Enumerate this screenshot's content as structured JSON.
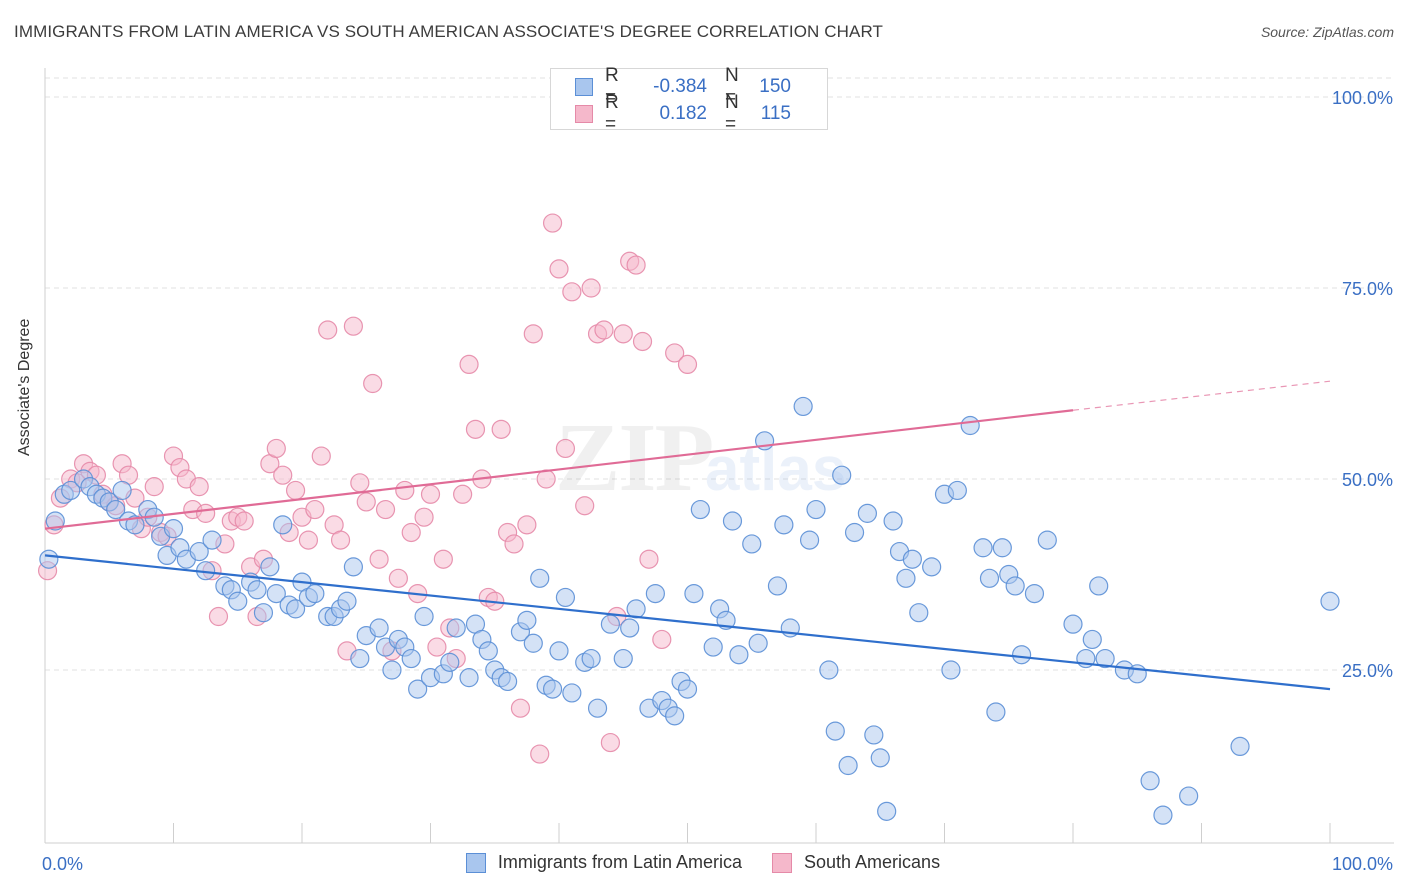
{
  "title": "IMMIGRANTS FROM LATIN AMERICA VS SOUTH AMERICAN ASSOCIATE'S DEGREE CORRELATION CHART",
  "source": "Source: ZipAtlas.com",
  "watermark": "ZIPatlas",
  "colors": {
    "blue_fill": "#a9c6ee",
    "blue_stroke": "#5b8fd6",
    "blue_line": "#2f6fcc",
    "pink_fill": "#f5b8cb",
    "pink_stroke": "#e58aa8",
    "pink_line": "#e06b96",
    "axis_text": "#3a6fc4",
    "grid": "#e2e2e2"
  },
  "legend_top": [
    {
      "r_label": "R =",
      "r_value": "-0.384",
      "n_label": "N =",
      "n_value": "150",
      "swatch": "blue"
    },
    {
      "r_label": "R =",
      "r_value": "0.182",
      "n_label": "N =",
      "n_value": "115",
      "swatch": "pink"
    }
  ],
  "legend_bottom": [
    {
      "label": "Immigrants from Latin America",
      "swatch": "blue"
    },
    {
      "label": "South Americans",
      "swatch": "pink"
    }
  ],
  "chart_data": {
    "type": "scatter",
    "title": "IMMIGRANTS FROM LATIN AMERICA VS SOUTH AMERICAN ASSOCIATE'S DEGREE CORRELATION CHART",
    "xlabel": "",
    "ylabel": "Associate's Degree",
    "xlim": [
      0,
      100
    ],
    "ylim": [
      0,
      100
    ],
    "x_tick_labels": [
      "0.0%",
      "100.0%"
    ],
    "y_tick_labels": [
      "25.0%",
      "50.0%",
      "75.0%",
      "100.0%"
    ],
    "y_ticks": [
      25,
      50,
      75,
      100
    ],
    "grid": true,
    "legend_position": "top-center",
    "series": [
      {
        "name": "Immigrants from Latin America",
        "color": "blue",
        "trend": {
          "x0": 0,
          "y0": 40.0,
          "x1": 100,
          "y1": 22.5
        },
        "points": [
          [
            0.3,
            39.5
          ],
          [
            0.8,
            44.5
          ],
          [
            1.5,
            48
          ],
          [
            2.0,
            48.5
          ],
          [
            3.0,
            50
          ],
          [
            3.5,
            49
          ],
          [
            4.0,
            48
          ],
          [
            4.5,
            47.5
          ],
          [
            5.0,
            47
          ],
          [
            5.5,
            46
          ],
          [
            6.0,
            48.5
          ],
          [
            6.5,
            44.5
          ],
          [
            7.0,
            44
          ],
          [
            8.0,
            46
          ],
          [
            8.5,
            45
          ],
          [
            9.0,
            42.5
          ],
          [
            9.5,
            40
          ],
          [
            10.0,
            43.5
          ],
          [
            10.5,
            41
          ],
          [
            11.0,
            39.5
          ],
          [
            12.0,
            40.5
          ],
          [
            12.5,
            38
          ],
          [
            13.0,
            42
          ],
          [
            14.0,
            36
          ],
          [
            14.5,
            35.5
          ],
          [
            15.0,
            34
          ],
          [
            16.0,
            36.5
          ],
          [
            16.5,
            35.5
          ],
          [
            17.0,
            32.5
          ],
          [
            17.5,
            38.5
          ],
          [
            18.0,
            35
          ],
          [
            18.5,
            44
          ],
          [
            19.0,
            33.5
          ],
          [
            19.5,
            33
          ],
          [
            20.0,
            36.5
          ],
          [
            20.5,
            34.5
          ],
          [
            21.0,
            35
          ],
          [
            22.0,
            32
          ],
          [
            22.5,
            32
          ],
          [
            23.0,
            33
          ],
          [
            23.5,
            34
          ],
          [
            24.0,
            38.5
          ],
          [
            24.5,
            26.5
          ],
          [
            25.0,
            29.5
          ],
          [
            26.0,
            30.5
          ],
          [
            26.5,
            28
          ],
          [
            27.0,
            25
          ],
          [
            27.5,
            29
          ],
          [
            28.0,
            28
          ],
          [
            28.5,
            26.5
          ],
          [
            29.0,
            22.5
          ],
          [
            29.5,
            32
          ],
          [
            30.0,
            24
          ],
          [
            31.0,
            24.5
          ],
          [
            31.5,
            26
          ],
          [
            32.0,
            30.5
          ],
          [
            33.0,
            24
          ],
          [
            33.5,
            31
          ],
          [
            34.0,
            29
          ],
          [
            34.5,
            27.5
          ],
          [
            35.0,
            25
          ],
          [
            35.5,
            24
          ],
          [
            36.0,
            23.5
          ],
          [
            37.0,
            30
          ],
          [
            37.5,
            31.5
          ],
          [
            38.0,
            28.5
          ],
          [
            38.5,
            37
          ],
          [
            39.0,
            23
          ],
          [
            39.5,
            22.5
          ],
          [
            40.0,
            27.5
          ],
          [
            40.5,
            34.5
          ],
          [
            41.0,
            22
          ],
          [
            42.0,
            26
          ],
          [
            42.5,
            26.5
          ],
          [
            43.0,
            20
          ],
          [
            44.0,
            31
          ],
          [
            45.0,
            26.5
          ],
          [
            45.5,
            30.5
          ],
          [
            46.0,
            33
          ],
          [
            47.0,
            20
          ],
          [
            47.5,
            35
          ],
          [
            48.0,
            21
          ],
          [
            48.5,
            20
          ],
          [
            49.0,
            19
          ],
          [
            49.5,
            23.5
          ],
          [
            50.0,
            22.5
          ],
          [
            50.5,
            35
          ],
          [
            51.0,
            46
          ],
          [
            52.0,
            28
          ],
          [
            52.5,
            33
          ],
          [
            53.0,
            31.5
          ],
          [
            53.5,
            44.5
          ],
          [
            54.0,
            27
          ],
          [
            55.0,
            41.5
          ],
          [
            55.5,
            28.5
          ],
          [
            56.0,
            55
          ],
          [
            57.0,
            36
          ],
          [
            57.5,
            44
          ],
          [
            58.0,
            30.5
          ],
          [
            59.0,
            59.5
          ],
          [
            59.5,
            42
          ],
          [
            60.0,
            46
          ],
          [
            61.0,
            25
          ],
          [
            61.5,
            17
          ],
          [
            62.0,
            50.5
          ],
          [
            62.5,
            12.5
          ],
          [
            63.0,
            43
          ],
          [
            64.0,
            45.5
          ],
          [
            64.5,
            16.5
          ],
          [
            65.0,
            13.5
          ],
          [
            65.5,
            6.5
          ],
          [
            66.0,
            44.5
          ],
          [
            66.5,
            40.5
          ],
          [
            67.0,
            37
          ],
          [
            67.5,
            39.5
          ],
          [
            68.0,
            32.5
          ],
          [
            69.0,
            38.5
          ],
          [
            70.0,
            48
          ],
          [
            70.5,
            25
          ],
          [
            71.0,
            48.5
          ],
          [
            72.0,
            57
          ],
          [
            73.0,
            41
          ],
          [
            73.5,
            37
          ],
          [
            74.0,
            19.5
          ],
          [
            74.5,
            41
          ],
          [
            75.0,
            37.5
          ],
          [
            75.5,
            36
          ],
          [
            76.0,
            27
          ],
          [
            77.0,
            35
          ],
          [
            78.0,
            42
          ],
          [
            80.0,
            31
          ],
          [
            81.0,
            26.5
          ],
          [
            81.5,
            29
          ],
          [
            82.0,
            36
          ],
          [
            82.5,
            26.5
          ],
          [
            84.0,
            25
          ],
          [
            85.0,
            24.5
          ],
          [
            86.0,
            10.5
          ],
          [
            87.0,
            6
          ],
          [
            89.0,
            8.5
          ],
          [
            93.0,
            15
          ],
          [
            103.0,
            34
          ]
        ]
      },
      {
        "name": "South Americans",
        "color": "pink",
        "trend": {
          "x0": 0,
          "y0": 43.5,
          "x1": 80,
          "y1": 59.0,
          "dash_to_x": 100,
          "dash_to_y": 62.8
        },
        "points": [
          [
            0.2,
            38
          ],
          [
            0.7,
            44
          ],
          [
            1.2,
            47.5
          ],
          [
            2.0,
            50
          ],
          [
            2.5,
            49.5
          ],
          [
            3.0,
            52
          ],
          [
            3.5,
            51
          ],
          [
            4.0,
            50.5
          ],
          [
            4.5,
            48
          ],
          [
            5.0,
            47
          ],
          [
            5.5,
            46.5
          ],
          [
            6.0,
            52
          ],
          [
            6.5,
            50.5
          ],
          [
            7.0,
            47.5
          ],
          [
            7.5,
            43.5
          ],
          [
            8.0,
            45
          ],
          [
            8.5,
            49
          ],
          [
            9.0,
            43
          ],
          [
            9.5,
            42.5
          ],
          [
            10.0,
            53
          ],
          [
            10.5,
            51.5
          ],
          [
            11.0,
            50
          ],
          [
            11.5,
            46
          ],
          [
            12.0,
            49
          ],
          [
            12.5,
            45.5
          ],
          [
            13.0,
            38
          ],
          [
            13.5,
            32
          ],
          [
            14.0,
            41.5
          ],
          [
            14.5,
            44.5
          ],
          [
            15.0,
            45
          ],
          [
            15.5,
            44.5
          ],
          [
            16.0,
            38.5
          ],
          [
            16.5,
            32
          ],
          [
            17.0,
            39.5
          ],
          [
            17.5,
            52
          ],
          [
            18.0,
            54
          ],
          [
            18.5,
            50.5
          ],
          [
            19.0,
            43
          ],
          [
            19.5,
            48.5
          ],
          [
            20.0,
            45
          ],
          [
            20.5,
            42
          ],
          [
            21.0,
            46
          ],
          [
            21.5,
            53
          ],
          [
            22.0,
            69.5
          ],
          [
            22.5,
            44
          ],
          [
            23.0,
            42
          ],
          [
            23.5,
            27.5
          ],
          [
            24.0,
            70
          ],
          [
            24.5,
            49.5
          ],
          [
            25.0,
            47
          ],
          [
            25.5,
            62.5
          ],
          [
            26.0,
            39.5
          ],
          [
            26.5,
            46
          ],
          [
            27.0,
            27.5
          ],
          [
            27.5,
            37
          ],
          [
            28.0,
            48.5
          ],
          [
            28.5,
            43
          ],
          [
            29.0,
            35
          ],
          [
            29.5,
            45
          ],
          [
            30.0,
            48
          ],
          [
            30.5,
            28
          ],
          [
            31.0,
            39.5
          ],
          [
            31.5,
            30.5
          ],
          [
            32.0,
            26.5
          ],
          [
            32.5,
            48
          ],
          [
            33.0,
            65
          ],
          [
            33.5,
            56.5
          ],
          [
            34.0,
            50
          ],
          [
            34.5,
            34.5
          ],
          [
            35.0,
            34
          ],
          [
            35.5,
            56.5
          ],
          [
            36.0,
            43
          ],
          [
            36.5,
            41.5
          ],
          [
            37.0,
            20
          ],
          [
            37.5,
            44
          ],
          [
            38.0,
            69
          ],
          [
            38.5,
            14
          ],
          [
            39.0,
            50
          ],
          [
            39.5,
            83.5
          ],
          [
            40.0,
            77.5
          ],
          [
            40.5,
            54
          ],
          [
            41.0,
            74.5
          ],
          [
            42.0,
            46.5
          ],
          [
            42.5,
            75
          ],
          [
            43.0,
            69
          ],
          [
            43.5,
            69.5
          ],
          [
            44.0,
            15.5
          ],
          [
            44.5,
            32
          ],
          [
            45.0,
            69
          ],
          [
            45.5,
            78.5
          ],
          [
            46.0,
            78
          ],
          [
            46.5,
            68
          ],
          [
            47.0,
            39.5
          ],
          [
            48.0,
            29
          ],
          [
            49.0,
            66.5
          ],
          [
            50.0,
            65
          ]
        ]
      }
    ]
  }
}
